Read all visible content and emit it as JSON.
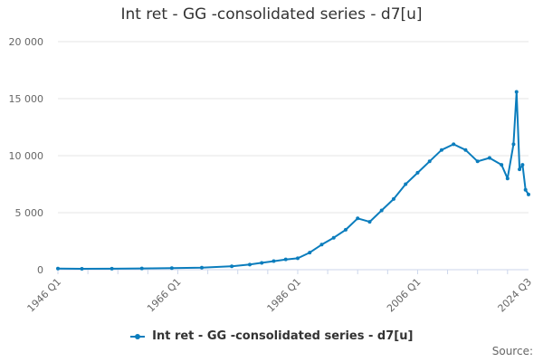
{
  "chart_data": {
    "type": "line",
    "title": "Int ret - GG -consolidated series - d7[u]",
    "xlabel": "",
    "ylabel": "",
    "x_range": [
      "1946 Q1",
      "2024 Q3"
    ],
    "x_ticks": [
      "1946 Q1",
      "1966 Q1",
      "1986 Q1",
      "2006 Q1",
      "2024 Q3"
    ],
    "ylim": [
      0,
      20000
    ],
    "y_ticks": [
      0,
      5000,
      10000,
      15000,
      20000
    ],
    "y_tick_labels": [
      "0",
      "5 000",
      "10 000",
      "15 000",
      "20 000"
    ],
    "grid": true,
    "legend_position": "bottom",
    "series": [
      {
        "name": "Int ret - GG -consolidated series - d7[u]",
        "color": "#0b7dbd",
        "points": [
          [
            "1946 Q1",
            100
          ],
          [
            "1950 Q1",
            80
          ],
          [
            "1955 Q1",
            90
          ],
          [
            "1960 Q1",
            110
          ],
          [
            "1965 Q1",
            140
          ],
          [
            "1970 Q1",
            180
          ],
          [
            "1975 Q1",
            300
          ],
          [
            "1978 Q1",
            450
          ],
          [
            "1980 Q1",
            600
          ],
          [
            "1982 Q1",
            750
          ],
          [
            "1984 Q1",
            900
          ],
          [
            "1986 Q1",
            1000
          ],
          [
            "1988 Q1",
            1500
          ],
          [
            "1990 Q1",
            2200
          ],
          [
            "1992 Q1",
            2800
          ],
          [
            "1994 Q1",
            3500
          ],
          [
            "1996 Q1",
            4500
          ],
          [
            "1998 Q1",
            4200
          ],
          [
            "2000 Q1",
            5200
          ],
          [
            "2002 Q1",
            6200
          ],
          [
            "2004 Q1",
            7500
          ],
          [
            "2006 Q1",
            8500
          ],
          [
            "2008 Q1",
            9500
          ],
          [
            "2010 Q1",
            10500
          ],
          [
            "2012 Q1",
            11000
          ],
          [
            "2014 Q1",
            10500
          ],
          [
            "2016 Q1",
            9500
          ],
          [
            "2018 Q1",
            9800
          ],
          [
            "2020 Q1",
            9200
          ],
          [
            "2021 Q1",
            8000
          ],
          [
            "2022 Q1",
            11000
          ],
          [
            "2022 Q3",
            15600
          ],
          [
            "2023 Q1",
            8800
          ],
          [
            "2023 Q3",
            9200
          ],
          [
            "2024 Q1",
            7000
          ],
          [
            "2024 Q3",
            6600
          ]
        ]
      }
    ],
    "source_label": "Source:"
  }
}
